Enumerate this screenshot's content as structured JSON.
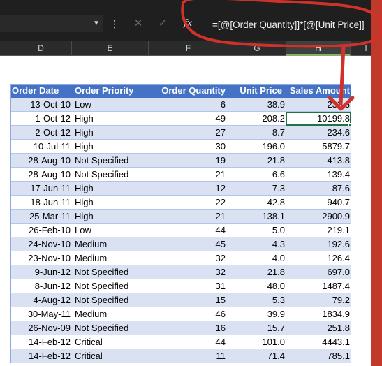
{
  "toolbar": {
    "dropdown_icon": "chevron-down-icon",
    "more_icon": "vertical-dots-icon",
    "cancel_glyph": "✕",
    "enter_glyph": "✓",
    "fx_label": "fx"
  },
  "formula_bar": {
    "value": "=[@[Order Quantity]]*[@[Unit Price]]"
  },
  "column_headers": [
    {
      "label": "D",
      "active": false
    },
    {
      "label": "E",
      "active": false
    },
    {
      "label": "F",
      "active": false
    },
    {
      "label": "G",
      "active": false
    },
    {
      "label": "H",
      "active": true
    },
    {
      "label": "I",
      "active": false
    }
  ],
  "table": {
    "headers": {
      "order_date": "Order Date",
      "order_priority": "Order Priority",
      "order_quantity": "Order Quantity",
      "unit_price": "Unit Price",
      "sales_amount": "Sales Amount"
    },
    "rows": [
      {
        "date": "13-Oct-10",
        "priority": "Low",
        "qty": "6",
        "price": "38.9",
        "sales": "233.6"
      },
      {
        "date": "1-Oct-12",
        "priority": "High",
        "qty": "49",
        "price": "208.2",
        "sales": "10199.8"
      },
      {
        "date": "2-Oct-12",
        "priority": "High",
        "qty": "27",
        "price": "8.7",
        "sales": "234.6"
      },
      {
        "date": "10-Jul-11",
        "priority": "High",
        "qty": "30",
        "price": "196.0",
        "sales": "5879.7"
      },
      {
        "date": "28-Aug-10",
        "priority": "Not Specified",
        "qty": "19",
        "price": "21.8",
        "sales": "413.8"
      },
      {
        "date": "28-Aug-10",
        "priority": "Not Specified",
        "qty": "21",
        "price": "6.6",
        "sales": "139.4"
      },
      {
        "date": "17-Jun-11",
        "priority": "High",
        "qty": "12",
        "price": "7.3",
        "sales": "87.6"
      },
      {
        "date": "18-Jun-11",
        "priority": "High",
        "qty": "22",
        "price": "42.8",
        "sales": "940.7"
      },
      {
        "date": "25-Mar-11",
        "priority": "High",
        "qty": "21",
        "price": "138.1",
        "sales": "2900.9"
      },
      {
        "date": "26-Feb-10",
        "priority": "Low",
        "qty": "44",
        "price": "5.0",
        "sales": "219.1"
      },
      {
        "date": "24-Nov-10",
        "priority": "Medium",
        "qty": "45",
        "price": "4.3",
        "sales": "192.6"
      },
      {
        "date": "23-Nov-10",
        "priority": "Medium",
        "qty": "32",
        "price": "4.0",
        "sales": "126.4"
      },
      {
        "date": "9-Jun-12",
        "priority": "Not Specified",
        "qty": "32",
        "price": "21.8",
        "sales": "697.0"
      },
      {
        "date": "8-Jun-12",
        "priority": "Not Specified",
        "qty": "31",
        "price": "48.0",
        "sales": "1487.4"
      },
      {
        "date": "4-Aug-12",
        "priority": "Not Specified",
        "qty": "15",
        "price": "5.3",
        "sales": "79.2"
      },
      {
        "date": "30-May-11",
        "priority": "Medium",
        "qty": "46",
        "price": "39.9",
        "sales": "1834.9"
      },
      {
        "date": "26-Nov-09",
        "priority": "Not Specified",
        "qty": "16",
        "price": "15.7",
        "sales": "251.8"
      },
      {
        "date": "14-Feb-12",
        "priority": "Critical",
        "qty": "44",
        "price": "101.0",
        "sales": "4443.1"
      },
      {
        "date": "14-Feb-12",
        "priority": "Critical",
        "qty": "11",
        "price": "71.4",
        "sales": "785.1"
      }
    ]
  },
  "selected_cell_row": 1,
  "colors": {
    "table_header": "#4472c4",
    "band": "#d9e1f2",
    "annotation_red": "#d0322b",
    "selection_green": "#217346"
  }
}
